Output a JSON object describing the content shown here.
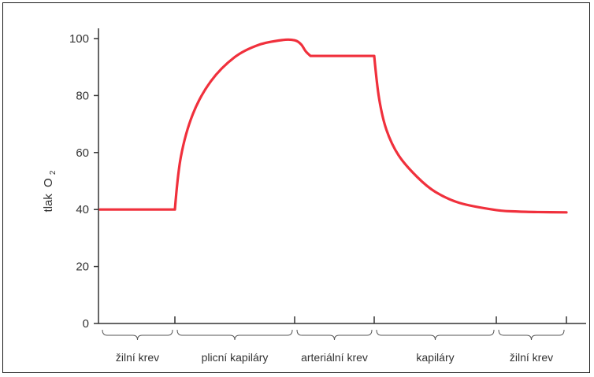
{
  "chart_data": {
    "type": "line",
    "title": "",
    "ylabel": "tlak",
    "ylabel_subscript_prefix": "O",
    "ylabel_subscript": "2",
    "xlabel": "",
    "ylim": [
      0,
      100
    ],
    "yticks": [
      0,
      20,
      40,
      60,
      80,
      100
    ],
    "grid": false,
    "legend": "none",
    "line_color": "#f0303c",
    "segments": [
      {
        "label": "žilní krev",
        "start": 0,
        "end": 1
      },
      {
        "label": "plicní kapiláry",
        "start": 1,
        "end": 2
      },
      {
        "label": "arteriální krev",
        "start": 2,
        "end": 3
      },
      {
        "label": "kapiláry",
        "start": 3,
        "end": 4
      },
      {
        "label": "žilní krev",
        "start": 4,
        "end": 5
      }
    ],
    "series": [
      {
        "x": [
          0,
          0.5,
          1.0,
          1.05,
          1.15,
          1.3,
          1.5,
          1.7,
          1.9,
          2.0,
          2.08,
          2.14,
          2.2,
          2.5,
          2.75,
          3.0,
          3.04,
          3.1,
          3.2,
          3.35,
          3.5,
          3.7,
          4.0,
          4.3,
          4.6,
          5.0
        ],
        "y": [
          40,
          40,
          40,
          58.5,
          73.5,
          85,
          93.5,
          97.8,
          99.5,
          99.4,
          98,
          95.5,
          93.9,
          93.9,
          93.9,
          93.9,
          79,
          68,
          59,
          51.5,
          46.2,
          42.3,
          39.8,
          39.3,
          39.1,
          39
        ]
      }
    ]
  }
}
